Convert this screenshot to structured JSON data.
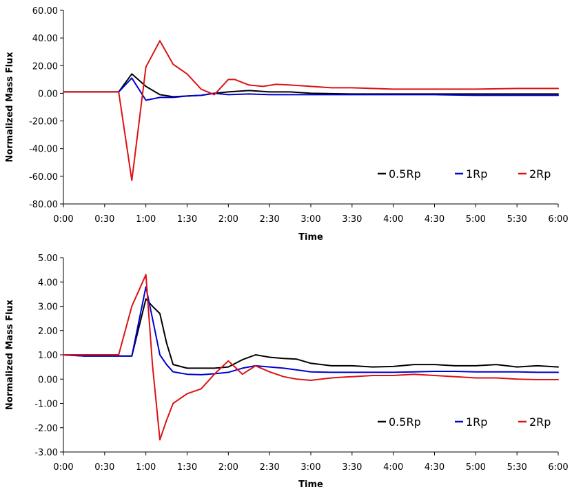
{
  "chart_data": [
    {
      "type": "line",
      "title": "",
      "xlabel": "Time",
      "ylabel": "Normalized Mass Flux",
      "ylim": [
        -80,
        60
      ],
      "yticks": [
        "60.00",
        "40.00",
        "20.00",
        "0.00",
        "-20.00",
        "-40.00",
        "-60.00",
        "-80.00"
      ],
      "xlim": [
        0,
        6
      ],
      "xticks": [
        "0:00",
        "0:30",
        "1:00",
        "1:30",
        "2:00",
        "2:30",
        "3:00",
        "3:30",
        "4:00",
        "4:30",
        "5:00",
        "5:30",
        "6:00"
      ],
      "legend_position": "bottom-right",
      "series": [
        {
          "name": "0.5Rp",
          "color": "#000000",
          "x": [
            0,
            0.25,
            0.5,
            0.67,
            0.83,
            1.0,
            1.17,
            1.33,
            1.5,
            1.67,
            1.83,
            2.0,
            2.25,
            2.5,
            2.75,
            3.0,
            3.5,
            4.0,
            4.5,
            5.0,
            5.5,
            6.0
          ],
          "values": [
            1,
            1,
            1,
            1,
            14,
            5,
            -1,
            -2.5,
            -2,
            -1.5,
            0,
            1,
            2,
            1,
            1,
            0,
            -0.5,
            -0.5,
            -0.5,
            -0.5,
            -0.5,
            -0.5
          ]
        },
        {
          "name": "1Rp",
          "color": "#0000d0",
          "x": [
            0,
            0.25,
            0.5,
            0.67,
            0.83,
            1.0,
            1.17,
            1.33,
            1.5,
            1.67,
            1.83,
            2.0,
            2.25,
            2.5,
            2.75,
            3.0,
            3.5,
            4.0,
            4.5,
            5.0,
            5.5,
            6.0
          ],
          "values": [
            1,
            1,
            1,
            1,
            11,
            -5,
            -3,
            -3,
            -2,
            -1.5,
            0,
            -1,
            -0.5,
            -1,
            -1,
            -1,
            -1,
            -1,
            -1,
            -1.5,
            -1.5,
            -1.5
          ]
        },
        {
          "name": "2Rp",
          "color": "#dd1111",
          "x": [
            0,
            0.25,
            0.5,
            0.67,
            0.83,
            1.0,
            1.17,
            1.33,
            1.5,
            1.67,
            1.83,
            2.0,
            2.08,
            2.25,
            2.42,
            2.58,
            2.75,
            3.0,
            3.25,
            3.5,
            3.75,
            4.0,
            4.5,
            5.0,
            5.5,
            6.0
          ],
          "values": [
            1,
            1,
            1,
            1,
            -63,
            19,
            38,
            21,
            14,
            3,
            -1,
            10,
            10,
            6,
            5,
            6.5,
            6,
            5,
            4,
            4,
            3.5,
            3,
            3,
            3,
            3.5,
            3.5
          ]
        }
      ]
    },
    {
      "type": "line",
      "title": "",
      "xlabel": "Time",
      "ylabel": "Normalized Mass Flux",
      "ylim": [
        -3,
        5
      ],
      "yticks": [
        "5.00",
        "4.00",
        "3.00",
        "2.00",
        "1.00",
        "0.00",
        "-1.00",
        "-2.00",
        "-3.00"
      ],
      "xlim": [
        0,
        6
      ],
      "xticks": [
        "0:00",
        "0:30",
        "1:00",
        "1:30",
        "2:00",
        "2:30",
        "3:00",
        "3:30",
        "4:00",
        "4:30",
        "5:00",
        "5:30",
        "6:00"
      ],
      "legend_position": "bottom-right",
      "series": [
        {
          "name": "0.5Rp",
          "color": "#000000",
          "x": [
            0,
            0.25,
            0.5,
            0.67,
            0.83,
            1.0,
            1.08,
            1.17,
            1.25,
            1.33,
            1.5,
            1.67,
            1.83,
            2.0,
            2.17,
            2.33,
            2.5,
            2.67,
            2.83,
            3.0,
            3.25,
            3.5,
            3.75,
            4.0,
            4.25,
            4.5,
            4.75,
            5.0,
            5.25,
            5.5,
            5.75,
            6.0
          ],
          "values": [
            1,
            0.95,
            0.95,
            0.95,
            0.95,
            3.3,
            3.0,
            2.7,
            1.5,
            0.6,
            0.45,
            0.45,
            0.45,
            0.5,
            0.8,
            1.0,
            0.9,
            0.85,
            0.82,
            0.65,
            0.55,
            0.55,
            0.5,
            0.52,
            0.6,
            0.6,
            0.55,
            0.55,
            0.6,
            0.5,
            0.55,
            0.5
          ]
        },
        {
          "name": "1Rp",
          "color": "#0000d0",
          "x": [
            0,
            0.25,
            0.5,
            0.67,
            0.83,
            1.0,
            1.08,
            1.17,
            1.25,
            1.33,
            1.5,
            1.67,
            1.83,
            2.0,
            2.17,
            2.33,
            2.5,
            2.67,
            2.83,
            3.0,
            3.25,
            3.5,
            3.75,
            4.0,
            4.25,
            4.5,
            4.75,
            5.0,
            5.25,
            5.5,
            5.75,
            6.0
          ],
          "values": [
            1,
            0.95,
            0.95,
            0.95,
            0.95,
            3.8,
            2.5,
            1.0,
            0.6,
            0.3,
            0.2,
            0.18,
            0.22,
            0.28,
            0.45,
            0.55,
            0.5,
            0.45,
            0.38,
            0.3,
            0.28,
            0.28,
            0.28,
            0.28,
            0.3,
            0.32,
            0.32,
            0.3,
            0.3,
            0.3,
            0.28,
            0.28
          ]
        },
        {
          "name": "2Rp",
          "color": "#dd1111",
          "x": [
            0,
            0.25,
            0.5,
            0.67,
            0.83,
            1.0,
            1.08,
            1.17,
            1.25,
            1.33,
            1.5,
            1.67,
            1.83,
            2.0,
            2.08,
            2.17,
            2.33,
            2.5,
            2.67,
            2.83,
            3.0,
            3.25,
            3.5,
            3.75,
            4.0,
            4.25,
            4.5,
            4.75,
            5.0,
            5.25,
            5.5,
            5.75,
            6.0
          ],
          "values": [
            1,
            1,
            1,
            1,
            3.0,
            4.3,
            0.6,
            -2.5,
            -1.7,
            -1.0,
            -0.6,
            -0.4,
            0.2,
            0.75,
            0.5,
            0.2,
            0.55,
            0.3,
            0.1,
            0.0,
            -0.05,
            0.05,
            0.1,
            0.15,
            0.15,
            0.2,
            0.15,
            0.1,
            0.05,
            0.05,
            0.0,
            -0.02,
            -0.02
          ]
        }
      ]
    }
  ]
}
